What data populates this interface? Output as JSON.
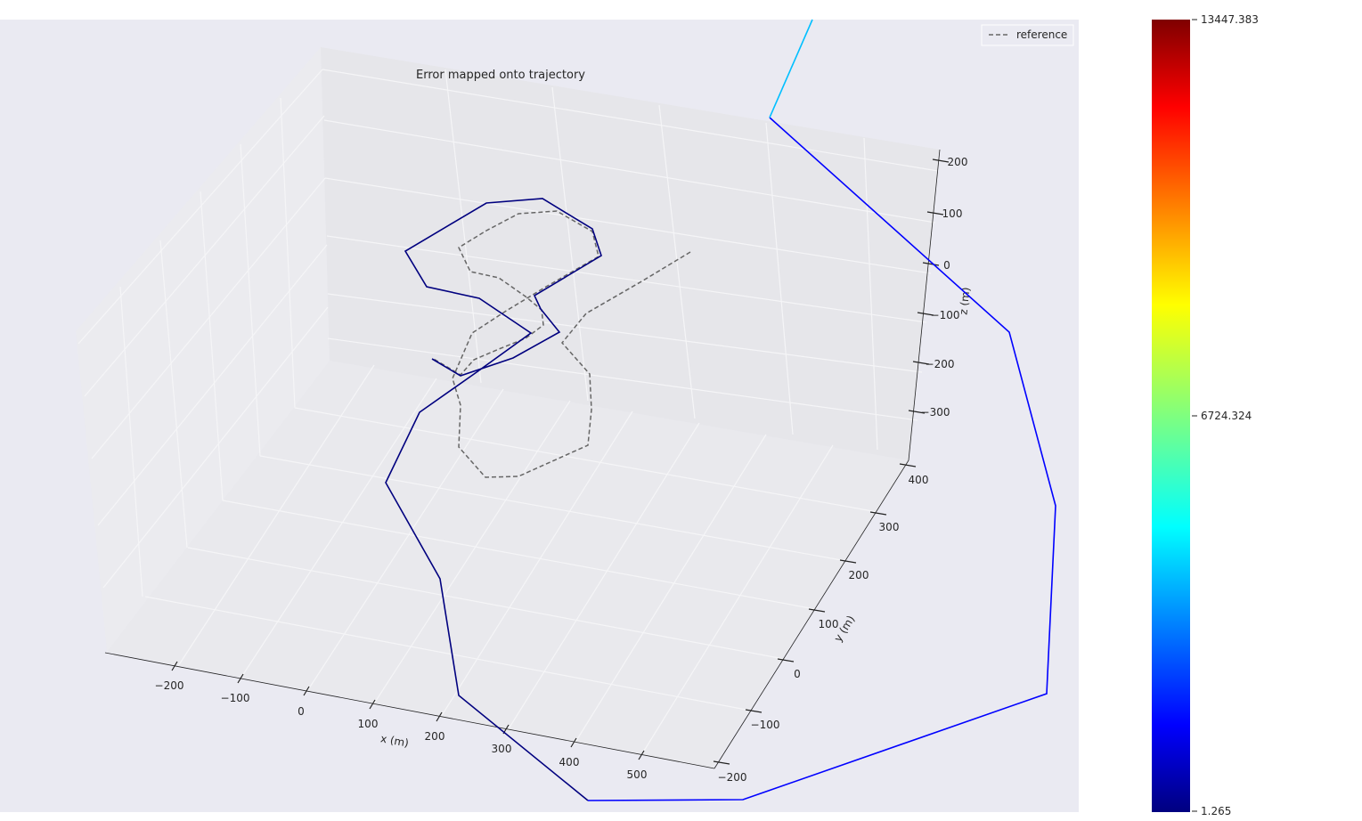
{
  "chart_data": {
    "type": "line",
    "projection": "3d",
    "title": "Error mapped onto trajectory",
    "xlabel": "x (m)",
    "ylabel": "y (m)",
    "zlabel": "z (m)",
    "x_ticks": [
      -200,
      -100,
      0,
      100,
      200,
      300,
      400,
      500
    ],
    "y_ticks": [
      -200,
      -100,
      0,
      100,
      200,
      300,
      400
    ],
    "z_ticks": [
      -300,
      -200,
      -100,
      0,
      100,
      200
    ],
    "tick_labels": {
      "x": [
        "−200",
        "−100",
        "0",
        "100",
        "200",
        "300",
        "400",
        "500"
      ],
      "y": [
        "−200",
        "−100",
        "0",
        "100",
        "200",
        "300",
        "400"
      ],
      "z": [
        "−300",
        "−200",
        "−100",
        "0",
        "100",
        "200"
      ]
    },
    "grid": true,
    "legend": {
      "entries": [
        "reference"
      ],
      "placement": "top-right",
      "line_style": "dashed",
      "color": "#666666"
    },
    "colorbar": {
      "colormap": "jet",
      "min": 1.265,
      "mid": 6724.324,
      "max": 13447.383,
      "tick_labels": [
        "13447.383",
        "6724.324",
        "1.265"
      ]
    },
    "colors": {
      "background": "#eaeaf2",
      "reference": "#666666",
      "low_error": "#00007f",
      "mid_low_error": "#0000ff",
      "mid_error": "#00bfff"
    }
  }
}
